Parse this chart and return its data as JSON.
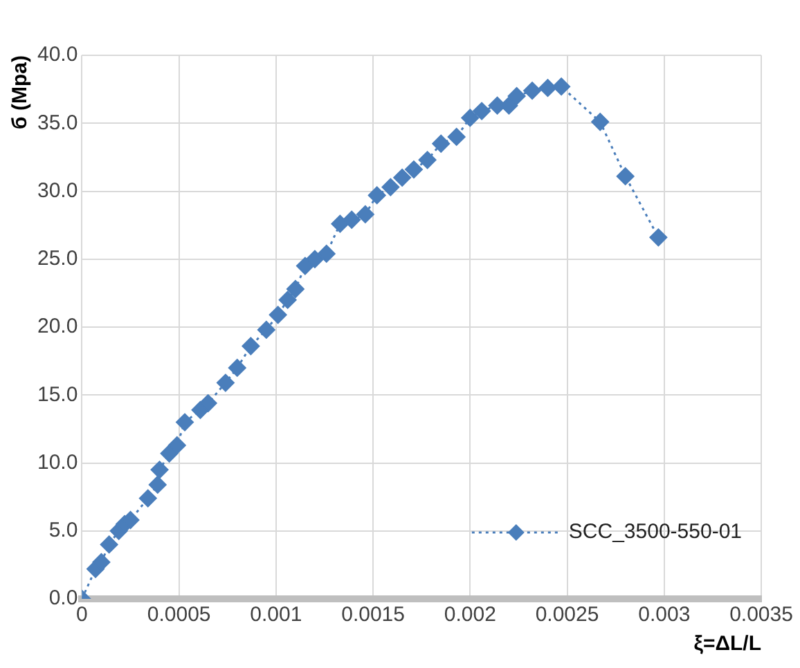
{
  "chart_data": {
    "type": "line",
    "xlabel": "ξ=ΔL/L",
    "ylabel": "б (Mpa)",
    "series": [
      {
        "name": "SCC_3500-550-01",
        "color": "#4a7ebb",
        "x": [
          0,
          7e-05,
          0.0001,
          0.00014,
          0.00019,
          0.00022,
          0.00025,
          0.00034,
          0.00039,
          0.0004,
          0.00045,
          0.00049,
          0.00053,
          0.00061,
          0.00065,
          0.00074,
          0.0008,
          0.00087,
          0.00095,
          0.00101,
          0.00106,
          0.0011,
          0.00115,
          0.0012,
          0.00126,
          0.00133,
          0.00139,
          0.00146,
          0.00152,
          0.00159,
          0.00165,
          0.00171,
          0.00178,
          0.00185,
          0.00193,
          0.002,
          0.00206,
          0.00214,
          0.0022,
          0.00224,
          0.00232,
          0.0024,
          0.00247,
          0.00267,
          0.0028,
          0.00297
        ],
        "values": [
          0,
          2.2,
          2.7,
          4.0,
          5.0,
          5.5,
          5.8,
          7.4,
          8.4,
          9.5,
          10.7,
          11.3,
          13.0,
          13.9,
          14.4,
          15.9,
          17.0,
          18.6,
          19.8,
          20.9,
          22.0,
          22.8,
          24.5,
          25.0,
          25.4,
          27.6,
          27.9,
          28.3,
          29.7,
          30.3,
          31.0,
          31.6,
          32.3,
          33.5,
          34.0,
          35.4,
          35.9,
          36.3,
          36.3,
          37.0,
          37.4,
          37.6,
          37.7,
          35.1,
          31.1,
          26.6
        ]
      }
    ],
    "xlim": [
      0,
      0.0035
    ],
    "xticks": [
      0,
      0.0005,
      0.001,
      0.0015,
      0.002,
      0.0025,
      0.003,
      0.0035
    ],
    "ylim": [
      0,
      40
    ],
    "yticks": [
      {
        "value": 0,
        "label": "0.0"
      },
      {
        "value": 5,
        "label": "5.0"
      },
      {
        "value": 10,
        "label": "10.0"
      },
      {
        "value": 15,
        "label": "15.0"
      },
      {
        "value": 20,
        "label": "20.0"
      },
      {
        "value": 25,
        "label": "25.0"
      },
      {
        "value": 30,
        "label": "30.0"
      },
      {
        "value": 35,
        "label": "35.0"
      },
      {
        "value": 40,
        "label": "40.0"
      }
    ],
    "grid": true,
    "legend": "bottom right",
    "marker": "diamond",
    "line_style": "dotted"
  }
}
